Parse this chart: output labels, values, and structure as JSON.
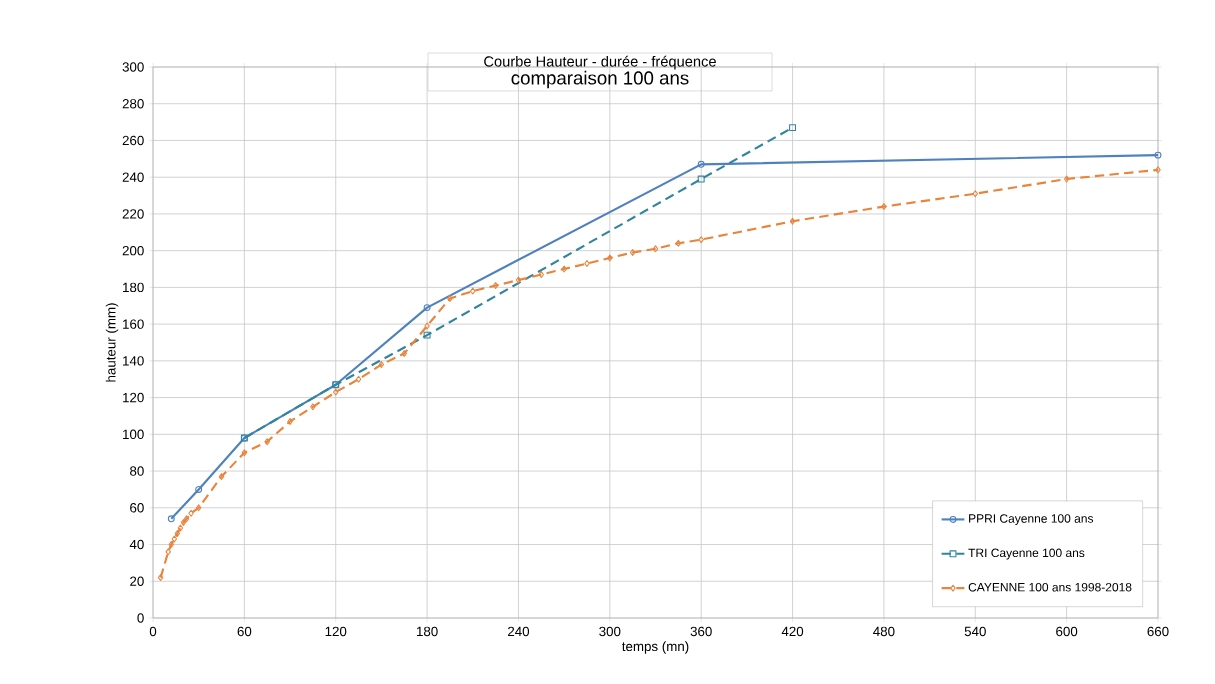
{
  "chart_data": {
    "type": "line",
    "title": "Courbe Hauteur - durée - fréquence",
    "subtitle": "comparaison 100 ans",
    "xlabel": "temps (mn)",
    "ylabel": "hauteur (mm)",
    "xlim": [
      0,
      660
    ],
    "ylim": [
      0,
      300
    ],
    "xticks": [
      0,
      60,
      120,
      180,
      240,
      300,
      360,
      420,
      480,
      540,
      600,
      660
    ],
    "yticks": [
      0,
      20,
      40,
      60,
      80,
      100,
      120,
      140,
      160,
      180,
      200,
      220,
      240,
      260,
      280,
      300
    ],
    "grid": true,
    "legend": "bottom right",
    "series": [
      {
        "name": "PPRI Cayenne 100 ans",
        "color": "#4f81bd",
        "marker": "circle",
        "line_style": "solid",
        "x": [
          12,
          30,
          60,
          120,
          180,
          360,
          660
        ],
        "values": [
          54,
          70,
          98,
          127,
          169,
          247,
          252
        ]
      },
      {
        "name": "TRI Cayenne 100 ans",
        "color": "#31859c",
        "marker": "square",
        "line_style": "dashed",
        "x": [
          60,
          120,
          180,
          360,
          420
        ],
        "values": [
          98,
          127,
          154,
          239,
          267
        ]
      },
      {
        "name": "CAYENNE 100 ans 1998-2018",
        "color": "#e8843c",
        "marker": "diamond",
        "line_style": "dashed",
        "x": [
          5,
          10,
          12,
          14,
          16,
          18,
          20,
          22,
          25,
          30,
          45,
          60,
          75,
          90,
          105,
          120,
          135,
          150,
          165,
          180,
          195,
          210,
          225,
          240,
          255,
          270,
          285,
          300,
          315,
          330,
          345,
          360,
          420,
          480,
          540,
          600,
          660
        ],
        "values": [
          22,
          36,
          40,
          43,
          46,
          49,
          52,
          54,
          57,
          60,
          77,
          90,
          96,
          107,
          115,
          123,
          130,
          138,
          144,
          159,
          174,
          178,
          181,
          184,
          187,
          190,
          193,
          196,
          199,
          201,
          204,
          206,
          216,
          224,
          231,
          239,
          244
        ]
      }
    ]
  }
}
